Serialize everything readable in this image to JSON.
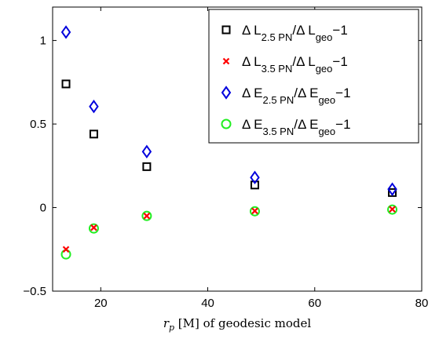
{
  "chart_data": {
    "type": "scatter",
    "title": "",
    "xlabel_parts": {
      "var": "r",
      "sub": "p",
      "rest": " [M] of geodesic model"
    },
    "ylabel": "",
    "xlim": [
      11,
      80
    ],
    "ylim": [
      -0.5,
      1.2
    ],
    "x_ticks": [
      20,
      40,
      60,
      80
    ],
    "y_ticks": [
      -0.5,
      0,
      0.5,
      1
    ],
    "x_tick_labels": [
      "20",
      "40",
      "60",
      "80"
    ],
    "y_tick_labels": [
      "−0.5",
      "0",
      "0.5",
      "1"
    ],
    "grid": false,
    "legend_position": "top-right",
    "x": [
      13.5,
      18.7,
      28.6,
      48.8,
      74.5
    ],
    "series": [
      {
        "key": "dL25",
        "legend": {
          "pre": "Δ L",
          "sub1": "2.5 PN",
          "mid": "/Δ L",
          "sub2": "geo",
          "post": "−1"
        },
        "marker": "square",
        "color": "#000000",
        "values": [
          0.74,
          0.44,
          0.245,
          0.135,
          0.09
        ]
      },
      {
        "key": "dL35",
        "legend": {
          "pre": "Δ L",
          "sub1": "3.5 PN",
          "mid": "/Δ L",
          "sub2": "geo",
          "post": "−1"
        },
        "marker": "x",
        "color": "#ff0000",
        "values": [
          -0.25,
          -0.12,
          -0.05,
          -0.02,
          -0.01
        ]
      },
      {
        "key": "dE25",
        "legend": {
          "pre": "Δ E",
          "sub1": "2.5 PN",
          "mid": "/Δ E",
          "sub2": "geo",
          "post": "−1"
        },
        "marker": "diamond",
        "color": "#0000dd",
        "values": [
          1.05,
          0.605,
          0.335,
          0.18,
          0.11
        ]
      },
      {
        "key": "dE35",
        "legend": {
          "pre": "Δ E",
          "sub1": "3.5 PN",
          "mid": "/Δ E",
          "sub2": "geo",
          "post": "−1"
        },
        "marker": "circle",
        "color": "#22ee22",
        "values": [
          -0.28,
          -0.125,
          -0.05,
          -0.022,
          -0.012
        ]
      }
    ]
  }
}
